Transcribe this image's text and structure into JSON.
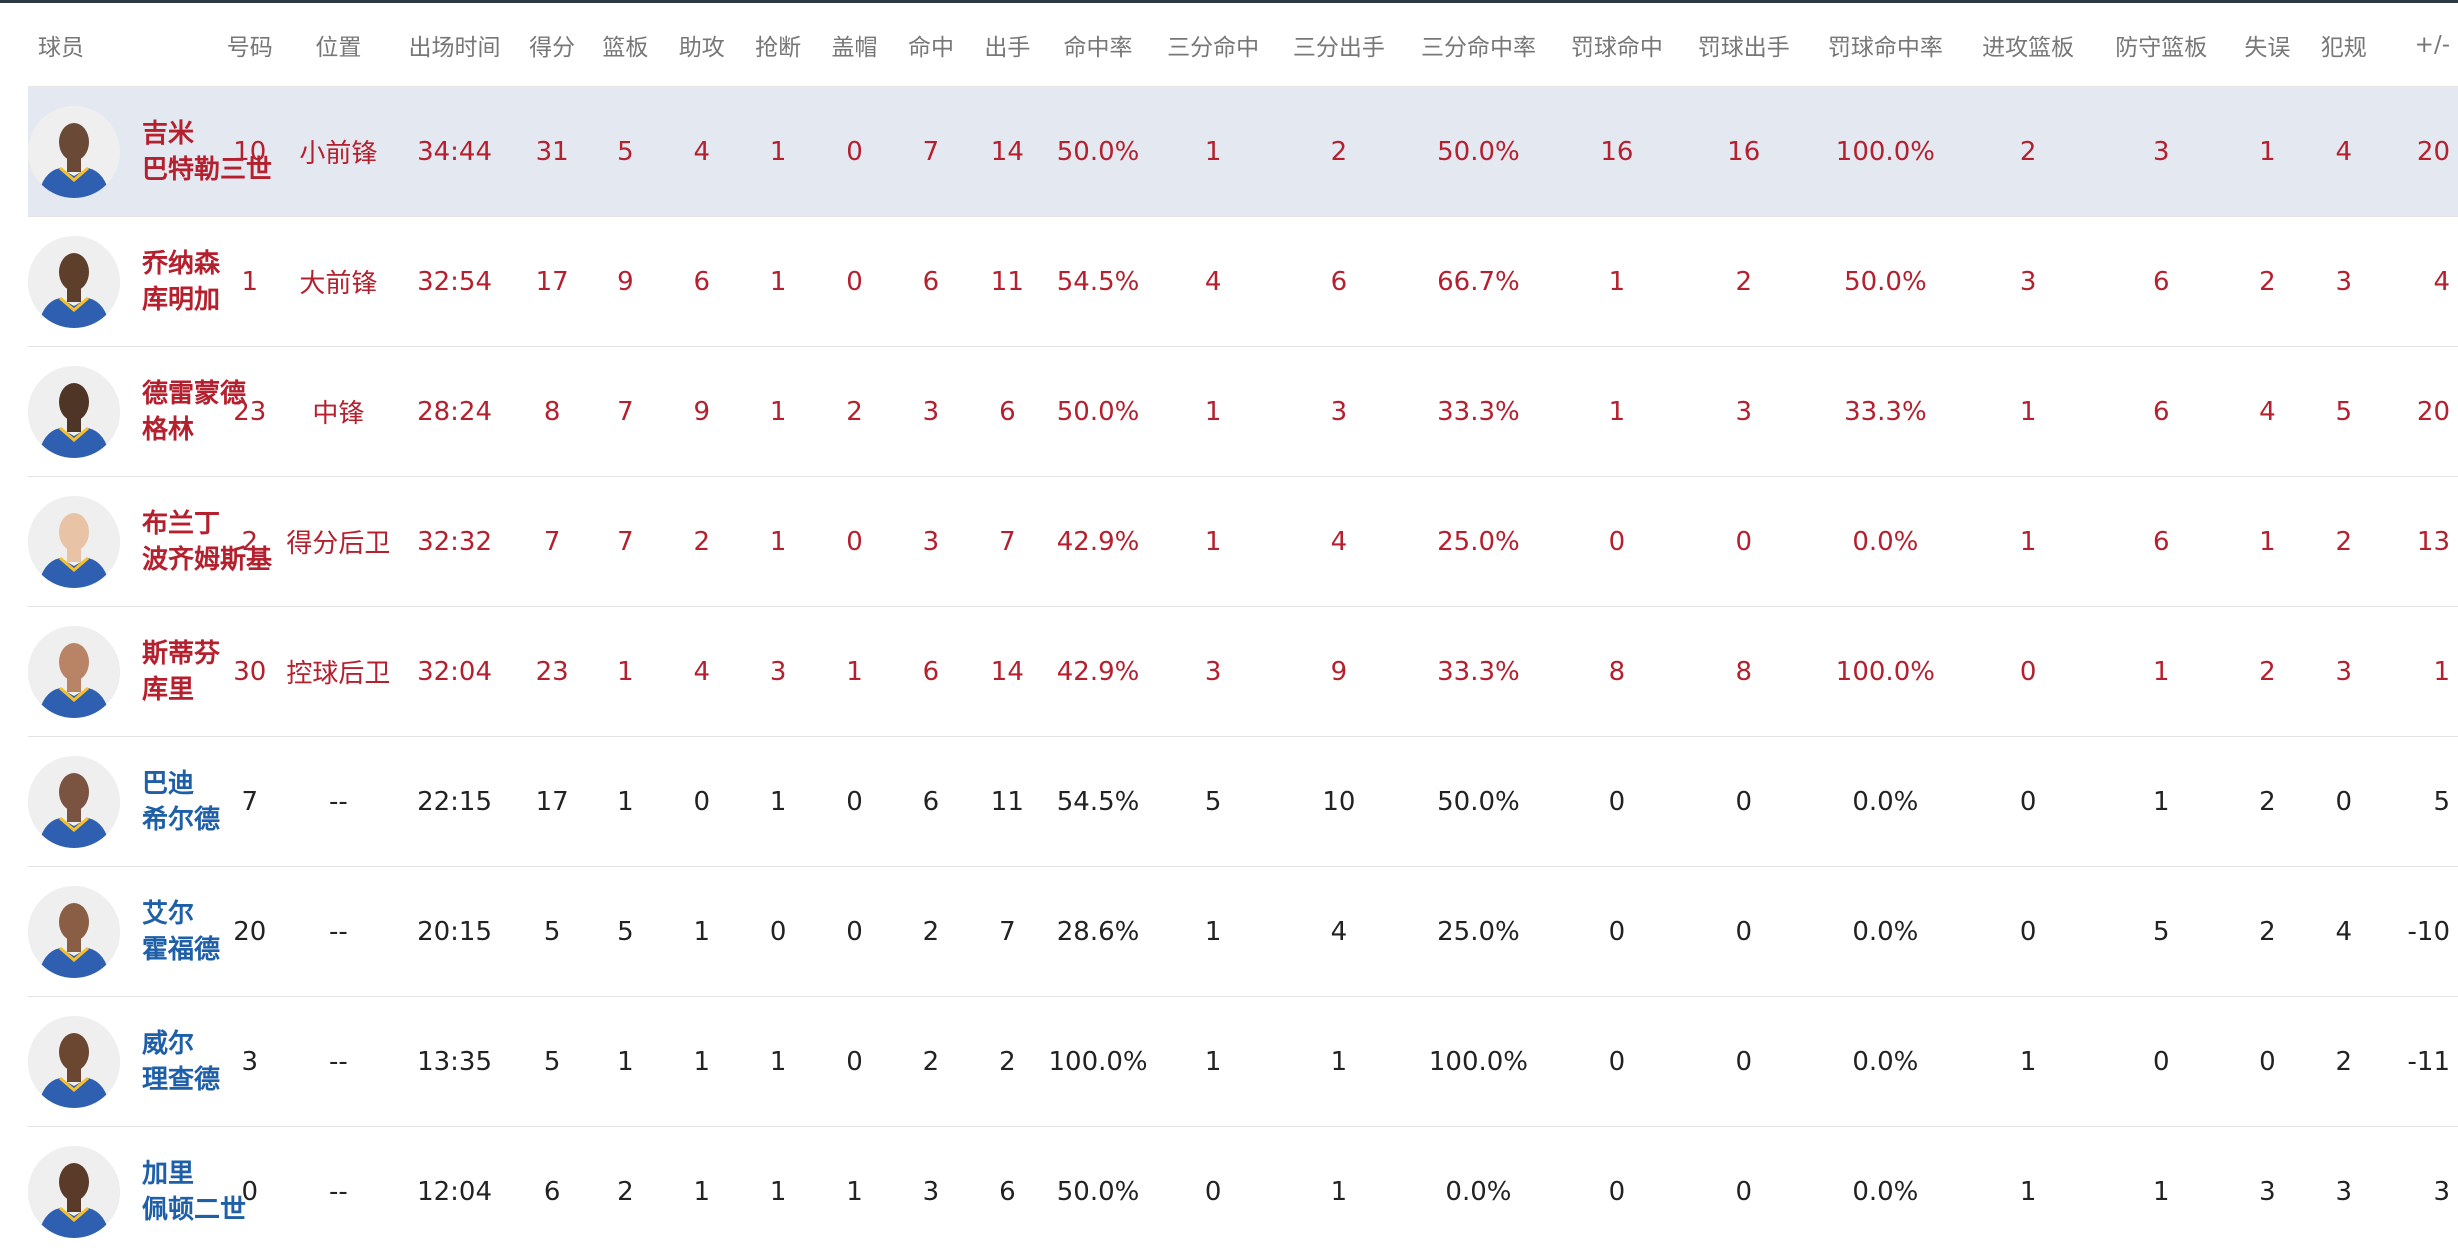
{
  "columns": [
    "球员",
    "号码",
    "位置",
    "出场时间",
    "得分",
    "篮板",
    "助攻",
    "抢断",
    "盖帽",
    "命中",
    "出手",
    "命中率",
    "三分命中",
    "三分出手",
    "三分命中率",
    "罚球命中",
    "罚球出手",
    "罚球命中率",
    "进攻篮板",
    "防守篮板",
    "失误",
    "犯规",
    "+/-"
  ],
  "colors": {
    "starter_text": "#b5202e",
    "bench_name": "#1e5fa8",
    "bench_text": "#222222",
    "header_text": "#777777",
    "highlight_row": "#e3e8f1",
    "avatar_jersey": "#2f5fb0",
    "avatar_trim": "#f5c02a"
  },
  "players": [
    {
      "name_line1": "吉米",
      "name_line2": "巴特勒三世",
      "number": "10",
      "position": "小前锋",
      "minutes": "34:44",
      "points": "31",
      "rebounds": "5",
      "assists": "4",
      "steals": "1",
      "blocks": "0",
      "fgm": "7",
      "fga": "14",
      "fg_pct": "50.0%",
      "tpm": "1",
      "tpa": "2",
      "tp_pct": "50.0%",
      "ftm": "16",
      "fta": "16",
      "ft_pct": "100.0%",
      "oreb": "2",
      "dreb": "3",
      "turnovers": "1",
      "fouls": "4",
      "plus_minus": "20",
      "starter": true,
      "highlighted": true,
      "skin": "#6a4a36"
    },
    {
      "name_line1": "乔纳森",
      "name_line2": "库明加",
      "number": "1",
      "position": "大前锋",
      "minutes": "32:54",
      "points": "17",
      "rebounds": "9",
      "assists": "6",
      "steals": "1",
      "blocks": "0",
      "fgm": "6",
      "fga": "11",
      "fg_pct": "54.5%",
      "tpm": "4",
      "tpa": "6",
      "tp_pct": "66.7%",
      "ftm": "1",
      "fta": "2",
      "ft_pct": "50.0%",
      "oreb": "3",
      "dreb": "6",
      "turnovers": "2",
      "fouls": "3",
      "plus_minus": "4",
      "starter": true,
      "highlighted": false,
      "skin": "#5e3f2c"
    },
    {
      "name_line1": "德雷蒙德",
      "name_line2": "格林",
      "number": "23",
      "position": "中锋",
      "minutes": "28:24",
      "points": "8",
      "rebounds": "7",
      "assists": "9",
      "steals": "1",
      "blocks": "2",
      "fgm": "3",
      "fga": "6",
      "fg_pct": "50.0%",
      "tpm": "1",
      "tpa": "3",
      "tp_pct": "33.3%",
      "ftm": "1",
      "fta": "3",
      "ft_pct": "33.3%",
      "oreb": "1",
      "dreb": "6",
      "turnovers": "4",
      "fouls": "5",
      "plus_minus": "20",
      "starter": true,
      "highlighted": false,
      "skin": "#4f3526"
    },
    {
      "name_line1": "布兰丁",
      "name_line2": "波齐姆斯基",
      "number": "2",
      "position": "得分后卫",
      "minutes": "32:32",
      "points": "7",
      "rebounds": "7",
      "assists": "2",
      "steals": "1",
      "blocks": "0",
      "fgm": "3",
      "fga": "7",
      "fg_pct": "42.9%",
      "tpm": "1",
      "tpa": "4",
      "tp_pct": "25.0%",
      "ftm": "0",
      "fta": "0",
      "ft_pct": "0.0%",
      "oreb": "1",
      "dreb": "6",
      "turnovers": "1",
      "fouls": "2",
      "plus_minus": "13",
      "starter": true,
      "highlighted": false,
      "skin": "#e8c3a5"
    },
    {
      "name_line1": "斯蒂芬",
      "name_line2": "库里",
      "number": "30",
      "position": "控球后卫",
      "minutes": "32:04",
      "points": "23",
      "rebounds": "1",
      "assists": "4",
      "steals": "3",
      "blocks": "1",
      "fgm": "6",
      "fga": "14",
      "fg_pct": "42.9%",
      "tpm": "3",
      "tpa": "9",
      "tp_pct": "33.3%",
      "ftm": "8",
      "fta": "8",
      "ft_pct": "100.0%",
      "oreb": "0",
      "dreb": "1",
      "turnovers": "2",
      "fouls": "3",
      "plus_minus": "1",
      "starter": true,
      "highlighted": false,
      "skin": "#b98466"
    },
    {
      "name_line1": "巴迪",
      "name_line2": "希尔德",
      "number": "7",
      "position": "--",
      "minutes": "22:15",
      "points": "17",
      "rebounds": "1",
      "assists": "0",
      "steals": "1",
      "blocks": "0",
      "fgm": "6",
      "fga": "11",
      "fg_pct": "54.5%",
      "tpm": "5",
      "tpa": "10",
      "tp_pct": "50.0%",
      "ftm": "0",
      "fta": "0",
      "ft_pct": "0.0%",
      "oreb": "0",
      "dreb": "1",
      "turnovers": "2",
      "fouls": "0",
      "plus_minus": "5",
      "starter": false,
      "highlighted": false,
      "skin": "#7a5440"
    },
    {
      "name_line1": "艾尔",
      "name_line2": "霍福德",
      "number": "20",
      "position": "--",
      "minutes": "20:15",
      "points": "5",
      "rebounds": "5",
      "assists": "1",
      "steals": "0",
      "blocks": "0",
      "fgm": "2",
      "fga": "7",
      "fg_pct": "28.6%",
      "tpm": "1",
      "tpa": "4",
      "tp_pct": "25.0%",
      "ftm": "0",
      "fta": "0",
      "ft_pct": "0.0%",
      "oreb": "0",
      "dreb": "5",
      "turnovers": "2",
      "fouls": "4",
      "plus_minus": "-10",
      "starter": false,
      "highlighted": false,
      "skin": "#8a5e44"
    },
    {
      "name_line1": "威尔",
      "name_line2": "理查德",
      "number": "3",
      "position": "--",
      "minutes": "13:35",
      "points": "5",
      "rebounds": "1",
      "assists": "1",
      "steals": "1",
      "blocks": "0",
      "fgm": "2",
      "fga": "2",
      "fg_pct": "100.0%",
      "tpm": "1",
      "tpa": "1",
      "tp_pct": "100.0%",
      "ftm": "0",
      "fta": "0",
      "ft_pct": "0.0%",
      "oreb": "1",
      "dreb": "0",
      "turnovers": "0",
      "fouls": "2",
      "plus_minus": "-11",
      "starter": false,
      "highlighted": false,
      "skin": "#6b4631"
    },
    {
      "name_line1": "加里",
      "name_line2": "佩顿二世",
      "number": "0",
      "position": "--",
      "minutes": "12:04",
      "points": "6",
      "rebounds": "2",
      "assists": "1",
      "steals": "1",
      "blocks": "1",
      "fgm": "3",
      "fga": "6",
      "fg_pct": "50.0%",
      "tpm": "0",
      "tpa": "1",
      "tp_pct": "0.0%",
      "ftm": "0",
      "fta": "0",
      "ft_pct": "0.0%",
      "oreb": "1",
      "dreb": "1",
      "turnovers": "3",
      "fouls": "3",
      "plus_minus": "3",
      "starter": false,
      "highlighted": false,
      "skin": "#5a3b29"
    }
  ]
}
